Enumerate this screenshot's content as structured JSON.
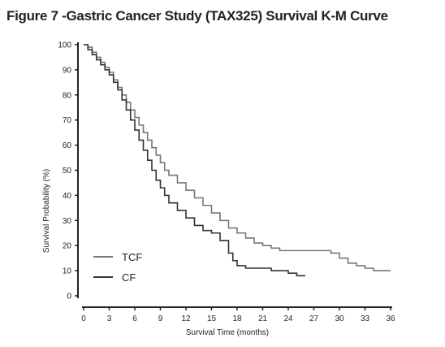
{
  "title": "Figure 7 -Gastric Cancer Study (TAX325) Survival K-M Curve",
  "chart_data": {
    "type": "line",
    "step": true,
    "xlabel": "Survival Time (months)",
    "ylabel": "Survival Probability (%)",
    "xlim": [
      0,
      36
    ],
    "ylim": [
      0,
      100
    ],
    "xticks": [
      0,
      3,
      6,
      9,
      12,
      15,
      18,
      21,
      24,
      27,
      30,
      33,
      36
    ],
    "yticks": [
      0,
      10,
      20,
      30,
      40,
      50,
      60,
      70,
      80,
      90,
      100
    ],
    "grid": false,
    "legend_position": "bottom-left",
    "series": [
      {
        "name": "TCF",
        "color": "#777777",
        "x": [
          0,
          0.5,
          1,
          1.5,
          2,
          2.5,
          3,
          3.5,
          4,
          4.5,
          5,
          5.5,
          6,
          6.5,
          7,
          7.5,
          8,
          8.5,
          9,
          9.5,
          10,
          11,
          12,
          13,
          14,
          15,
          16,
          17,
          18,
          19,
          20,
          21,
          22,
          23,
          24,
          25,
          26,
          27,
          28,
          29,
          30,
          31,
          32,
          33,
          34,
          35,
          36
        ],
        "y": [
          100,
          99,
          97,
          95,
          93,
          91,
          89,
          86,
          83,
          80,
          77,
          74,
          71,
          68,
          65,
          62,
          59,
          56,
          53,
          50,
          48,
          45,
          42,
          39,
          36,
          33,
          30,
          27,
          25,
          23,
          21,
          20,
          19,
          18,
          18,
          18,
          18,
          18,
          18,
          17,
          15,
          13,
          12,
          11,
          10,
          10,
          10
        ]
      },
      {
        "name": "CF",
        "color": "#333333",
        "x": [
          0,
          0.5,
          1,
          1.5,
          2,
          2.5,
          3,
          3.5,
          4,
          4.5,
          5,
          5.5,
          6,
          6.5,
          7,
          7.5,
          8,
          8.5,
          9,
          9.5,
          10,
          11,
          12,
          13,
          14,
          15,
          16,
          17,
          17.5,
          18,
          19,
          20,
          21,
          22,
          23,
          24,
          25,
          26
        ],
        "y": [
          100,
          98,
          96,
          94,
          92,
          90,
          88,
          85,
          82,
          78,
          74,
          70,
          66,
          62,
          58,
          54,
          50,
          46,
          43,
          40,
          37,
          34,
          31,
          28,
          26,
          25,
          22,
          17,
          14,
          12,
          11,
          11,
          11,
          10,
          10,
          9,
          8,
          8
        ]
      }
    ]
  }
}
